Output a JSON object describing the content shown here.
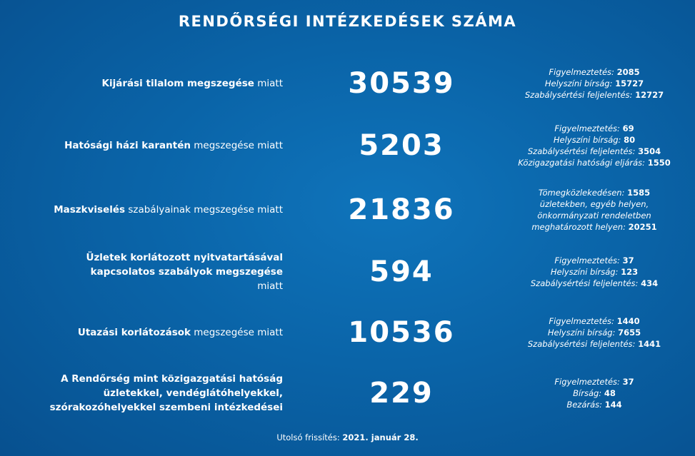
{
  "title": "RENDŐRSÉGI INTÉZKEDÉSEK SZÁMA",
  "rows": [
    {
      "bold": "Kijárási tilalom megszegése",
      "rest": " miatt",
      "total": "30539",
      "details": [
        [
          "Figyelmeztetés: ",
          "2085"
        ],
        [
          "Helyszíni bírság: ",
          "15727"
        ],
        [
          "Szabálysértési feljelentés: ",
          "12727"
        ]
      ]
    },
    {
      "bold": "Hatósági házi karantén",
      "rest": " megszegése miatt",
      "total": "5203",
      "details": [
        [
          "Figyelmeztetés: ",
          "69"
        ],
        [
          "Helyszíni bírság: ",
          "80"
        ],
        [
          "Szabálysértési feljelentés: ",
          "3504"
        ],
        [
          "Közigazgatási hatósági eljárás: ",
          "1550"
        ]
      ]
    },
    {
      "bold": "Maszkviselés",
      "rest": " szabályainak megszegése miatt",
      "total": "21836",
      "details": [
        [
          "Tömegközlekedésen: ",
          "1585"
        ],
        [
          "üzletekben, egyéb helyen,",
          ""
        ],
        [
          "önkormányzati rendeletben",
          ""
        ],
        [
          "meghatározott helyen: ",
          "20251"
        ]
      ]
    },
    {
      "bold": "Üzletek korlátozott nyitvatartásával kapcsolatos szabályok megszegése",
      "rest": " miatt",
      "total": "594",
      "details": [
        [
          "Figyelmeztetés: ",
          "37"
        ],
        [
          "Helyszíni bírság: ",
          "123"
        ],
        [
          "Szabálysértési feljelentés: ",
          "434"
        ]
      ]
    },
    {
      "bold": "Utazási korlátozások",
      "rest": " megszegése miatt",
      "total": "10536",
      "details": [
        [
          "Figyelmeztetés: ",
          "1440"
        ],
        [
          "Helyszíni bírság: ",
          "7655"
        ],
        [
          "Szabálysértési feljelentés: ",
          "1441"
        ]
      ]
    },
    {
      "bold": "A Rendőrség mint közigazgatási hatóság üzletekkel, vendéglátóhelyekkel, szórakozóhelyekkel szembeni intézkedései",
      "rest": "",
      "total": "229",
      "details": [
        [
          "Figyelmeztetés: ",
          "37"
        ],
        [
          "Bírság: ",
          "48"
        ],
        [
          "Bezárás: ",
          "144"
        ]
      ]
    }
  ],
  "footer": {
    "label": "Utolsó frissítés: ",
    "date": "2021. január 28."
  }
}
